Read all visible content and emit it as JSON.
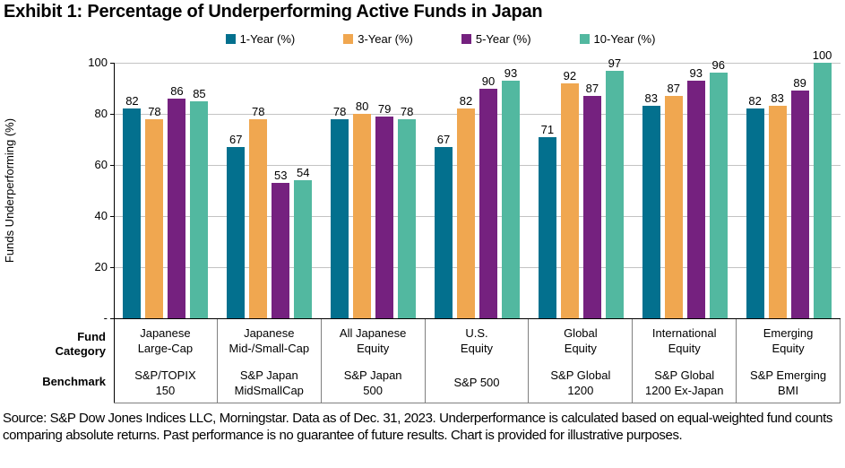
{
  "title": "Exhibit 1: Percentage of Underperforming Active Funds in Japan",
  "footer": "Source: S&P Dow Jones Indices LLC, Morningstar. Data as of Dec. 31, 2023. Underperformance is calculated based on equal-weighted fund counts comparing absolute returns. Past performance is no guarantee of future results. Chart is provided for illustrative purposes.",
  "row_headers": {
    "fund_category": "Fund\nCategory",
    "benchmark": "Benchmark"
  },
  "chart_data": {
    "type": "bar",
    "title": "Exhibit 1: Percentage of Underperforming Active Funds in Japan",
    "xlabel": "",
    "ylabel": "Funds Underperforming (%)",
    "ylim": [
      0,
      100
    ],
    "yticks": [
      100,
      80,
      60,
      40,
      20,
      0
    ],
    "ytick_labels": [
      "100",
      "80",
      "60",
      "40",
      "20",
      "-"
    ],
    "grid": true,
    "legend_position": "top",
    "categories": [
      {
        "fund_category": "Japanese\nLarge-Cap",
        "benchmark": "S&P/TOPIX\n150"
      },
      {
        "fund_category": "Japanese\nMid-/Small-Cap",
        "benchmark": "S&P Japan\nMidSmallCap"
      },
      {
        "fund_category": "All Japanese\nEquity",
        "benchmark": "S&P Japan\n500"
      },
      {
        "fund_category": "U.S.\nEquity",
        "benchmark": "S&P 500"
      },
      {
        "fund_category": "Global\nEquity",
        "benchmark": "S&P Global\n1200"
      },
      {
        "fund_category": "International\nEquity",
        "benchmark": "S&P Global\n1200 Ex-Japan"
      },
      {
        "fund_category": "Emerging\nEquity",
        "benchmark": "S&P Emerging\nBMI"
      }
    ],
    "series": [
      {
        "name": "1-Year (%)",
        "color": "#03708e",
        "values": [
          82,
          67,
          78,
          67,
          71,
          83,
          82
        ]
      },
      {
        "name": "3-Year (%)",
        "color": "#f0a750",
        "values": [
          78,
          78,
          80,
          82,
          92,
          87,
          83
        ]
      },
      {
        "name": "5-Year (%)",
        "color": "#75217f",
        "values": [
          86,
          53,
          79,
          90,
          87,
          93,
          89
        ]
      },
      {
        "name": "10-Year (%)",
        "color": "#52b8a0",
        "values": [
          85,
          54,
          78,
          93,
          97,
          96,
          100
        ]
      }
    ]
  },
  "colors": {
    "gridline": "#c3c3c3",
    "axis": "#000000",
    "table_border": "#808080"
  }
}
